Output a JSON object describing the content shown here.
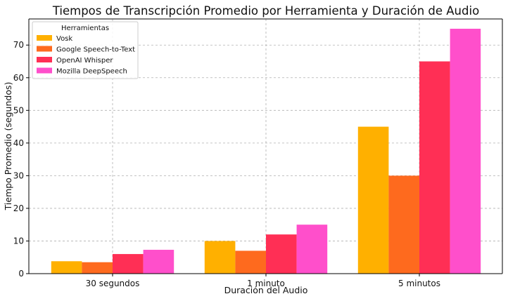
{
  "chart_data": {
    "type": "bar",
    "title": "Tiempos de Transcripción Promedio por Herramienta y Duración de Audio",
    "xlabel": "Duración del Audio",
    "ylabel": "Tiempo Promedio (segundos)",
    "categories": [
      "30 segundos",
      "1 minuto",
      "5 minutos"
    ],
    "ylim": [
      0,
      78
    ],
    "yticks": [
      0,
      10,
      20,
      30,
      40,
      50,
      60,
      70
    ],
    "grid": true,
    "legend": {
      "title": "Herramientas",
      "placement": "top-left"
    },
    "series": [
      {
        "name": "Vosk",
        "color": "#FFB000",
        "values": [
          3.8,
          10,
          45
        ]
      },
      {
        "name": "Google Speech-to-Text",
        "color": "#FE6A1E",
        "values": [
          3.5,
          7,
          30
        ]
      },
      {
        "name": "OpenAI Whisper",
        "color": "#FF2F55",
        "values": [
          6,
          12,
          65
        ]
      },
      {
        "name": "Mozilla DeepSpeech",
        "color": "#FF4FCB",
        "values": [
          7.3,
          15,
          75
        ]
      }
    ]
  }
}
